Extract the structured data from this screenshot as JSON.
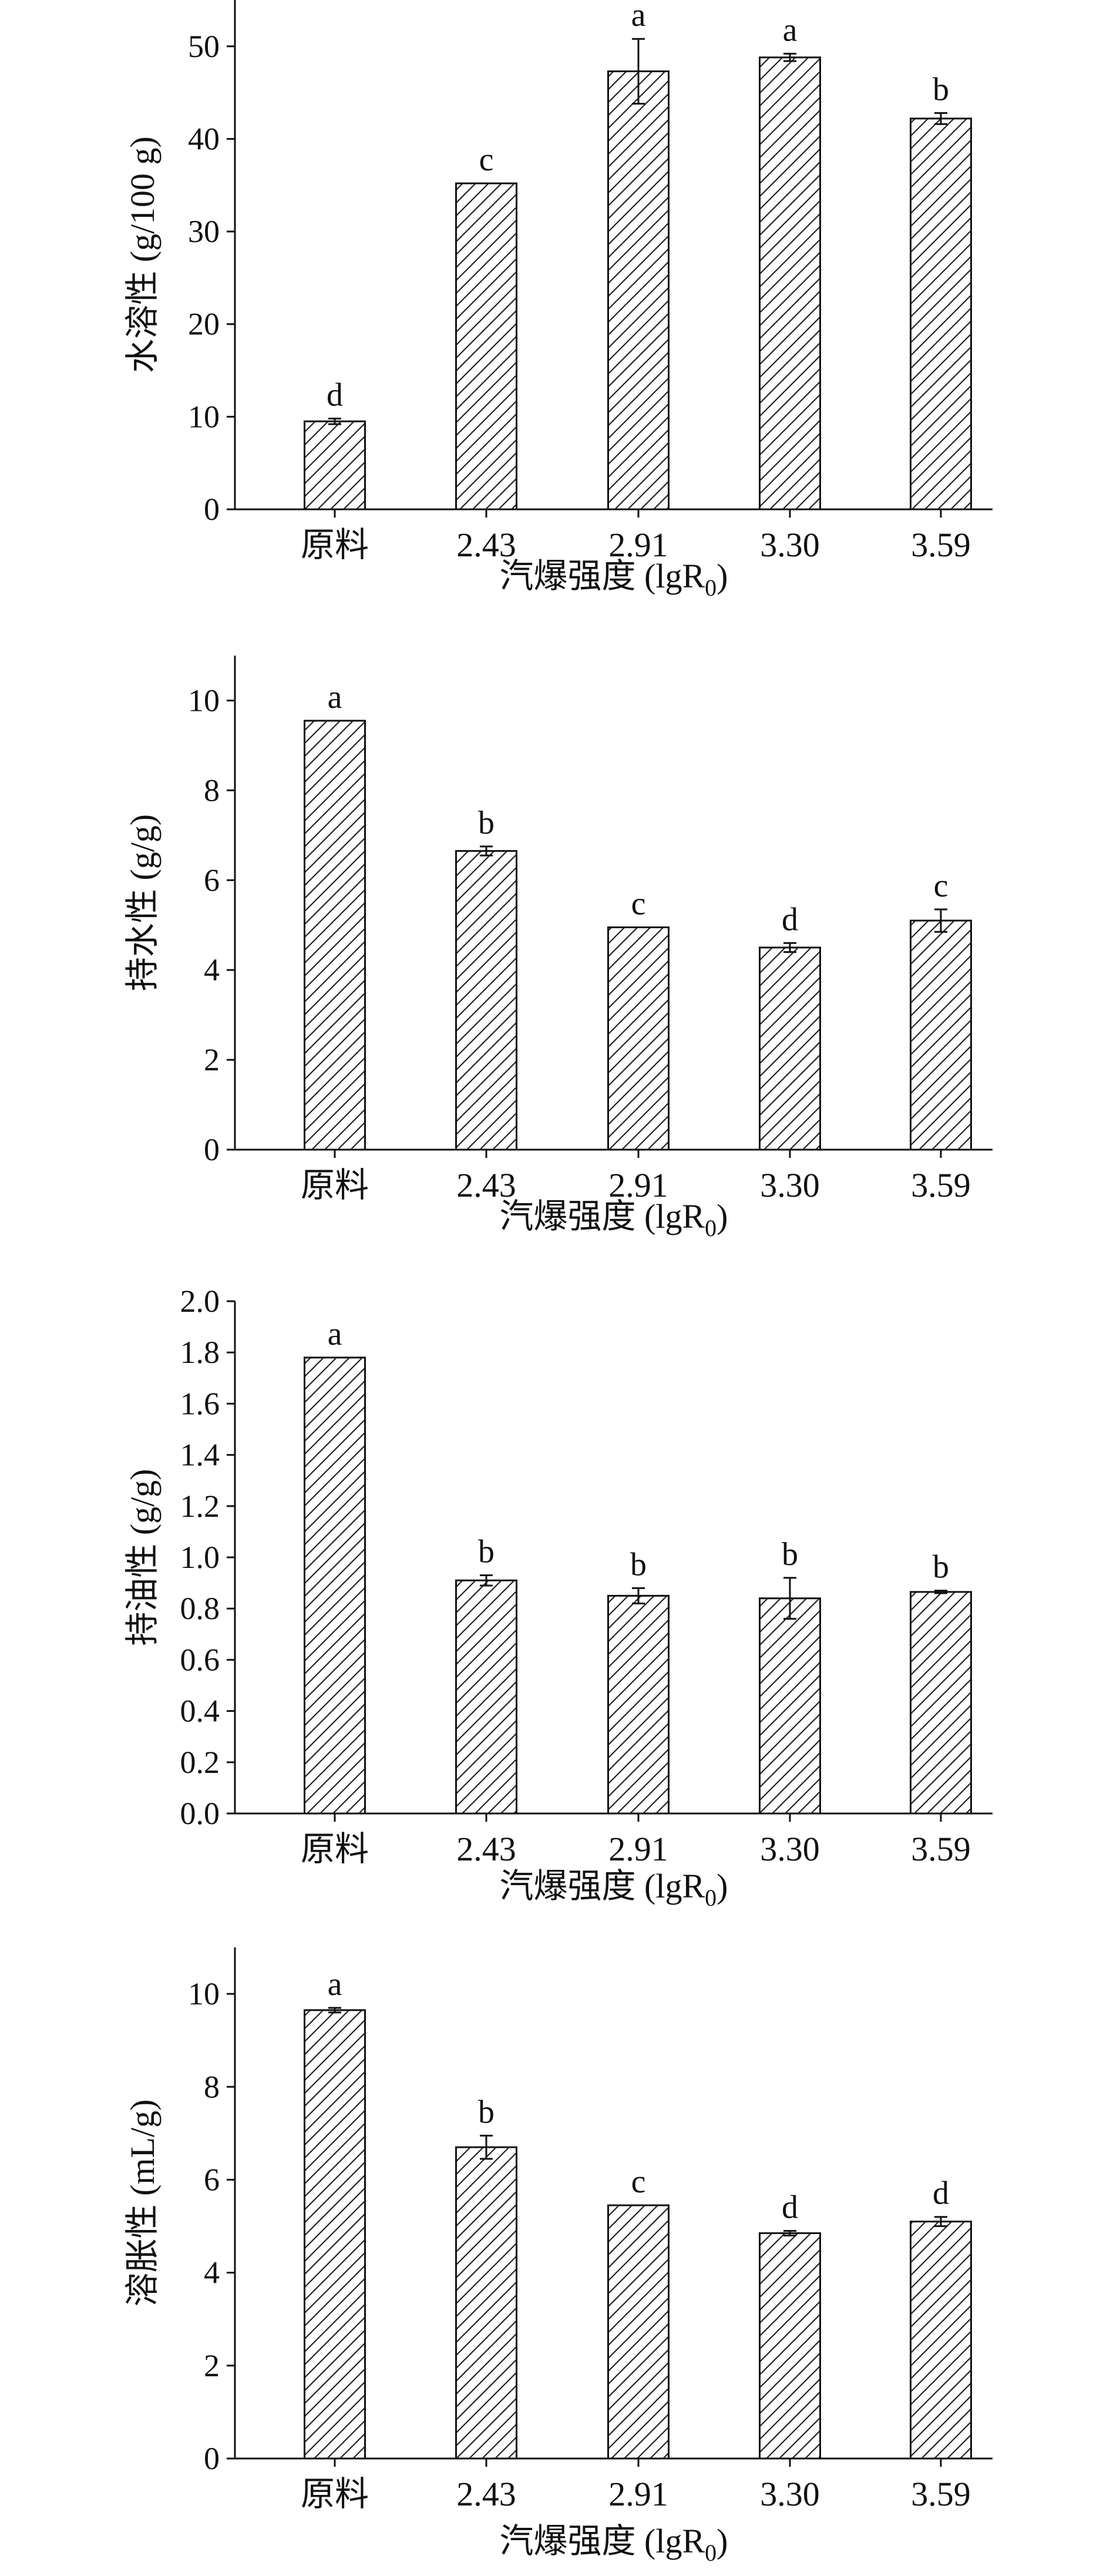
{
  "chart_data": [
    {
      "type": "bar",
      "ylabel": "水溶性 (g/100 g)",
      "xlabel": "汽爆强度 (lgR",
      "xlabel_sub": "0",
      "xlabel_close": ")",
      "categories": [
        "原料",
        "2.43",
        "2.91",
        "3.30",
        "3.59"
      ],
      "values": [
        9.5,
        35.2,
        47.3,
        48.8,
        42.2
      ],
      "errors": [
        0.3,
        0.0,
        3.5,
        0.4,
        0.6
      ],
      "letters": [
        "d",
        "c",
        "a",
        "a",
        "b"
      ],
      "ylim": [
        0,
        55
      ],
      "yticks": [
        "0",
        "10",
        "20",
        "30",
        "40",
        "50"
      ],
      "ytick_values": [
        0,
        10,
        20,
        30,
        40,
        50
      ]
    },
    {
      "type": "bar",
      "ylabel": "持水性 (g/g)",
      "xlabel": "汽爆强度 (lgR",
      "xlabel_sub": "0",
      "xlabel_close": ")",
      "categories": [
        "原料",
        "2.43",
        "2.91",
        "3.30",
        "3.59"
      ],
      "values": [
        9.55,
        6.65,
        4.95,
        4.5,
        5.1
      ],
      "errors": [
        0.0,
        0.1,
        0.0,
        0.1,
        0.25
      ],
      "letters": [
        "a",
        "b",
        "c",
        "d",
        "c"
      ],
      "ylim": [
        0,
        11
      ],
      "yticks": [
        "0",
        "2",
        "4",
        "6",
        "8",
        "10"
      ],
      "ytick_values": [
        0,
        2,
        4,
        6,
        8,
        10
      ]
    },
    {
      "type": "bar",
      "ylabel": "持油性 (g/g)",
      "xlabel": "汽爆强度 (lgR",
      "xlabel_sub": "0",
      "xlabel_close": ")",
      "categories": [
        "原料",
        "2.43",
        "2.91",
        "3.30",
        "3.59"
      ],
      "values": [
        1.78,
        0.91,
        0.85,
        0.84,
        0.865
      ],
      "errors": [
        0.0,
        0.02,
        0.03,
        0.08,
        0.005
      ],
      "letters": [
        "a",
        "b",
        "b",
        "b",
        "b"
      ],
      "ylim": [
        0,
        2.0
      ],
      "yticks": [
        "0.0",
        "0.2",
        "0.4",
        "0.6",
        "0.8",
        "1.0",
        "1.2",
        "1.4",
        "1.6",
        "1.8",
        "2.0"
      ],
      "ytick_values": [
        0,
        0.2,
        0.4,
        0.6,
        0.8,
        1.0,
        1.2,
        1.4,
        1.6,
        1.8,
        2.0
      ]
    },
    {
      "type": "bar",
      "ylabel": "溶胀性 (mL/g)",
      "xlabel": "汽爆强度 (lgR",
      "xlabel_sub": "0",
      "xlabel_close": ")",
      "categories": [
        "原料",
        "2.43",
        "2.91",
        "3.30",
        "3.59"
      ],
      "values": [
        9.65,
        6.7,
        5.45,
        4.85,
        5.1
      ],
      "errors": [
        0.05,
        0.25,
        0.0,
        0.05,
        0.1
      ],
      "letters": [
        "a",
        "b",
        "c",
        "d",
        "d"
      ],
      "ylim": [
        0,
        11
      ],
      "yticks": [
        "0",
        "2",
        "4",
        "6",
        "8",
        "10"
      ],
      "ytick_values": [
        0,
        2,
        4,
        6,
        8,
        10
      ]
    }
  ],
  "colors": {
    "bar_fill": "#ffffff",
    "hatch": "#222222",
    "axis": "#111111"
  }
}
